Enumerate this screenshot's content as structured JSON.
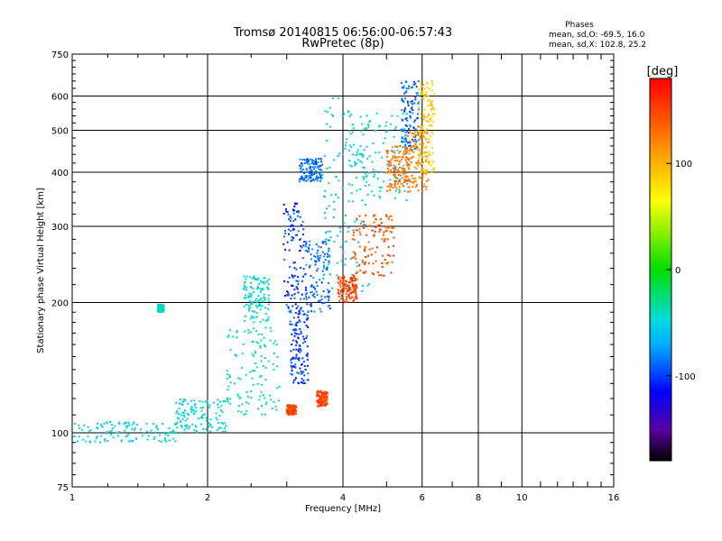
{
  "chart_data": {
    "type": "scatter",
    "title": "Tromsø 20140815 06:56:00-06:57:43",
    "subtitle": "RwPretec (8p)",
    "legend_title": "Phases",
    "stats": [
      "mean, sd,O: -69.5, 16.0",
      "mean, sd,X: 102.8, 25.2"
    ],
    "xlabel": "Frequency [MHz]",
    "ylabel": "Stationary phase Virtual Height [km]",
    "x_scale": "log",
    "y_scale": "log",
    "xlim": [
      1,
      16
    ],
    "ylim": [
      75,
      750
    ],
    "x_ticks": [
      1,
      2,
      4,
      6,
      8,
      10,
      16
    ],
    "y_ticks": [
      75,
      100,
      200,
      300,
      400,
      500,
      600,
      750
    ],
    "grid": true,
    "colorbar": {
      "label": "[deg]",
      "range": [
        -180,
        180
      ],
      "ticks": [
        100,
        0,
        -100
      ],
      "colormap": "rainbow"
    },
    "clusters": [
      {
        "x": [
          1.0,
          1.7
        ],
        "y": [
          95,
          106
        ],
        "phase": -45
      },
      {
        "x": [
          1.7,
          2.2
        ],
        "y": [
          100,
          120
        ],
        "phase": -45
      },
      {
        "x": [
          2.2,
          2.9
        ],
        "y": [
          110,
          175
        ],
        "phase": -40
      },
      {
        "x": [
          1.55,
          1.6
        ],
        "y": [
          190,
          198
        ],
        "phase": -40
      },
      {
        "x": [
          2.4,
          2.75
        ],
        "y": [
          180,
          230
        ],
        "phase": -40
      },
      {
        "x": [
          2.95,
          3.3
        ],
        "y": [
          190,
          340
        ],
        "phase": -105
      },
      {
        "x": [
          3.05,
          3.35
        ],
        "y": [
          130,
          190
        ],
        "phase": -105
      },
      {
        "x": [
          3.3,
          3.75
        ],
        "y": [
          190,
          280
        ],
        "phase": -95
      },
      {
        "x": [
          3.2,
          3.6
        ],
        "y": [
          380,
          430
        ],
        "phase": -95
      },
      {
        "x": [
          3.6,
          4.6
        ],
        "y": [
          210,
          600
        ],
        "phase": -50
      },
      {
        "x": [
          4.1,
          5.6
        ],
        "y": [
          340,
          550
        ],
        "phase": -40
      },
      {
        "x": [
          3.9,
          4.3
        ],
        "y": [
          200,
          230
        ],
        "phase": 150
      },
      {
        "x": [
          4.2,
          5.2
        ],
        "y": [
          230,
          320
        ],
        "phase": 145
      },
      {
        "x": [
          5.0,
          5.6
        ],
        "y": [
          360,
          460
        ],
        "phase": 130
      },
      {
        "x": [
          5.4,
          5.9
        ],
        "y": [
          450,
          650
        ],
        "phase": -95
      },
      {
        "x": [
          5.5,
          6.2
        ],
        "y": [
          360,
          500
        ],
        "phase": 120
      },
      {
        "x": [
          5.9,
          6.4
        ],
        "y": [
          400,
          650
        ],
        "phase": 90
      },
      {
        "x": [
          3.5,
          3.7
        ],
        "y": [
          115,
          125
        ],
        "phase": 150
      },
      {
        "x": [
          3.0,
          3.15
        ],
        "y": [
          110,
          116
        ],
        "phase": 150
      }
    ]
  }
}
